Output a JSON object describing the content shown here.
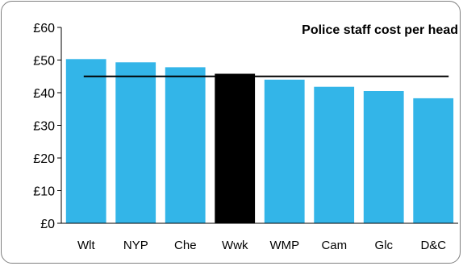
{
  "chart_data": {
    "type": "bar",
    "title": "Police staff cost per head",
    "xlabel": "",
    "ylabel": "",
    "categories": [
      "Wlt",
      "NYP",
      "Che",
      "Wwk",
      "WMP",
      "Cam",
      "Glc",
      "D&C"
    ],
    "values": [
      50.3,
      49.3,
      47.8,
      45.8,
      44.0,
      41.8,
      40.5,
      38.3
    ],
    "highlight_category": "Wwk",
    "ylim": [
      0,
      60
    ],
    "yticks": [
      0,
      10,
      20,
      30,
      40,
      50,
      60
    ],
    "ytick_labels": [
      "£0",
      "£10",
      "£20",
      "£30",
      "£40",
      "£50",
      "£60"
    ],
    "reference_line": 45,
    "grid": false,
    "legend": "none",
    "colors": {
      "bar": "#33b5e8",
      "highlight": "#000000",
      "reference_line": "#000000",
      "axis": "#000000",
      "border": "#7f7f7f"
    }
  }
}
